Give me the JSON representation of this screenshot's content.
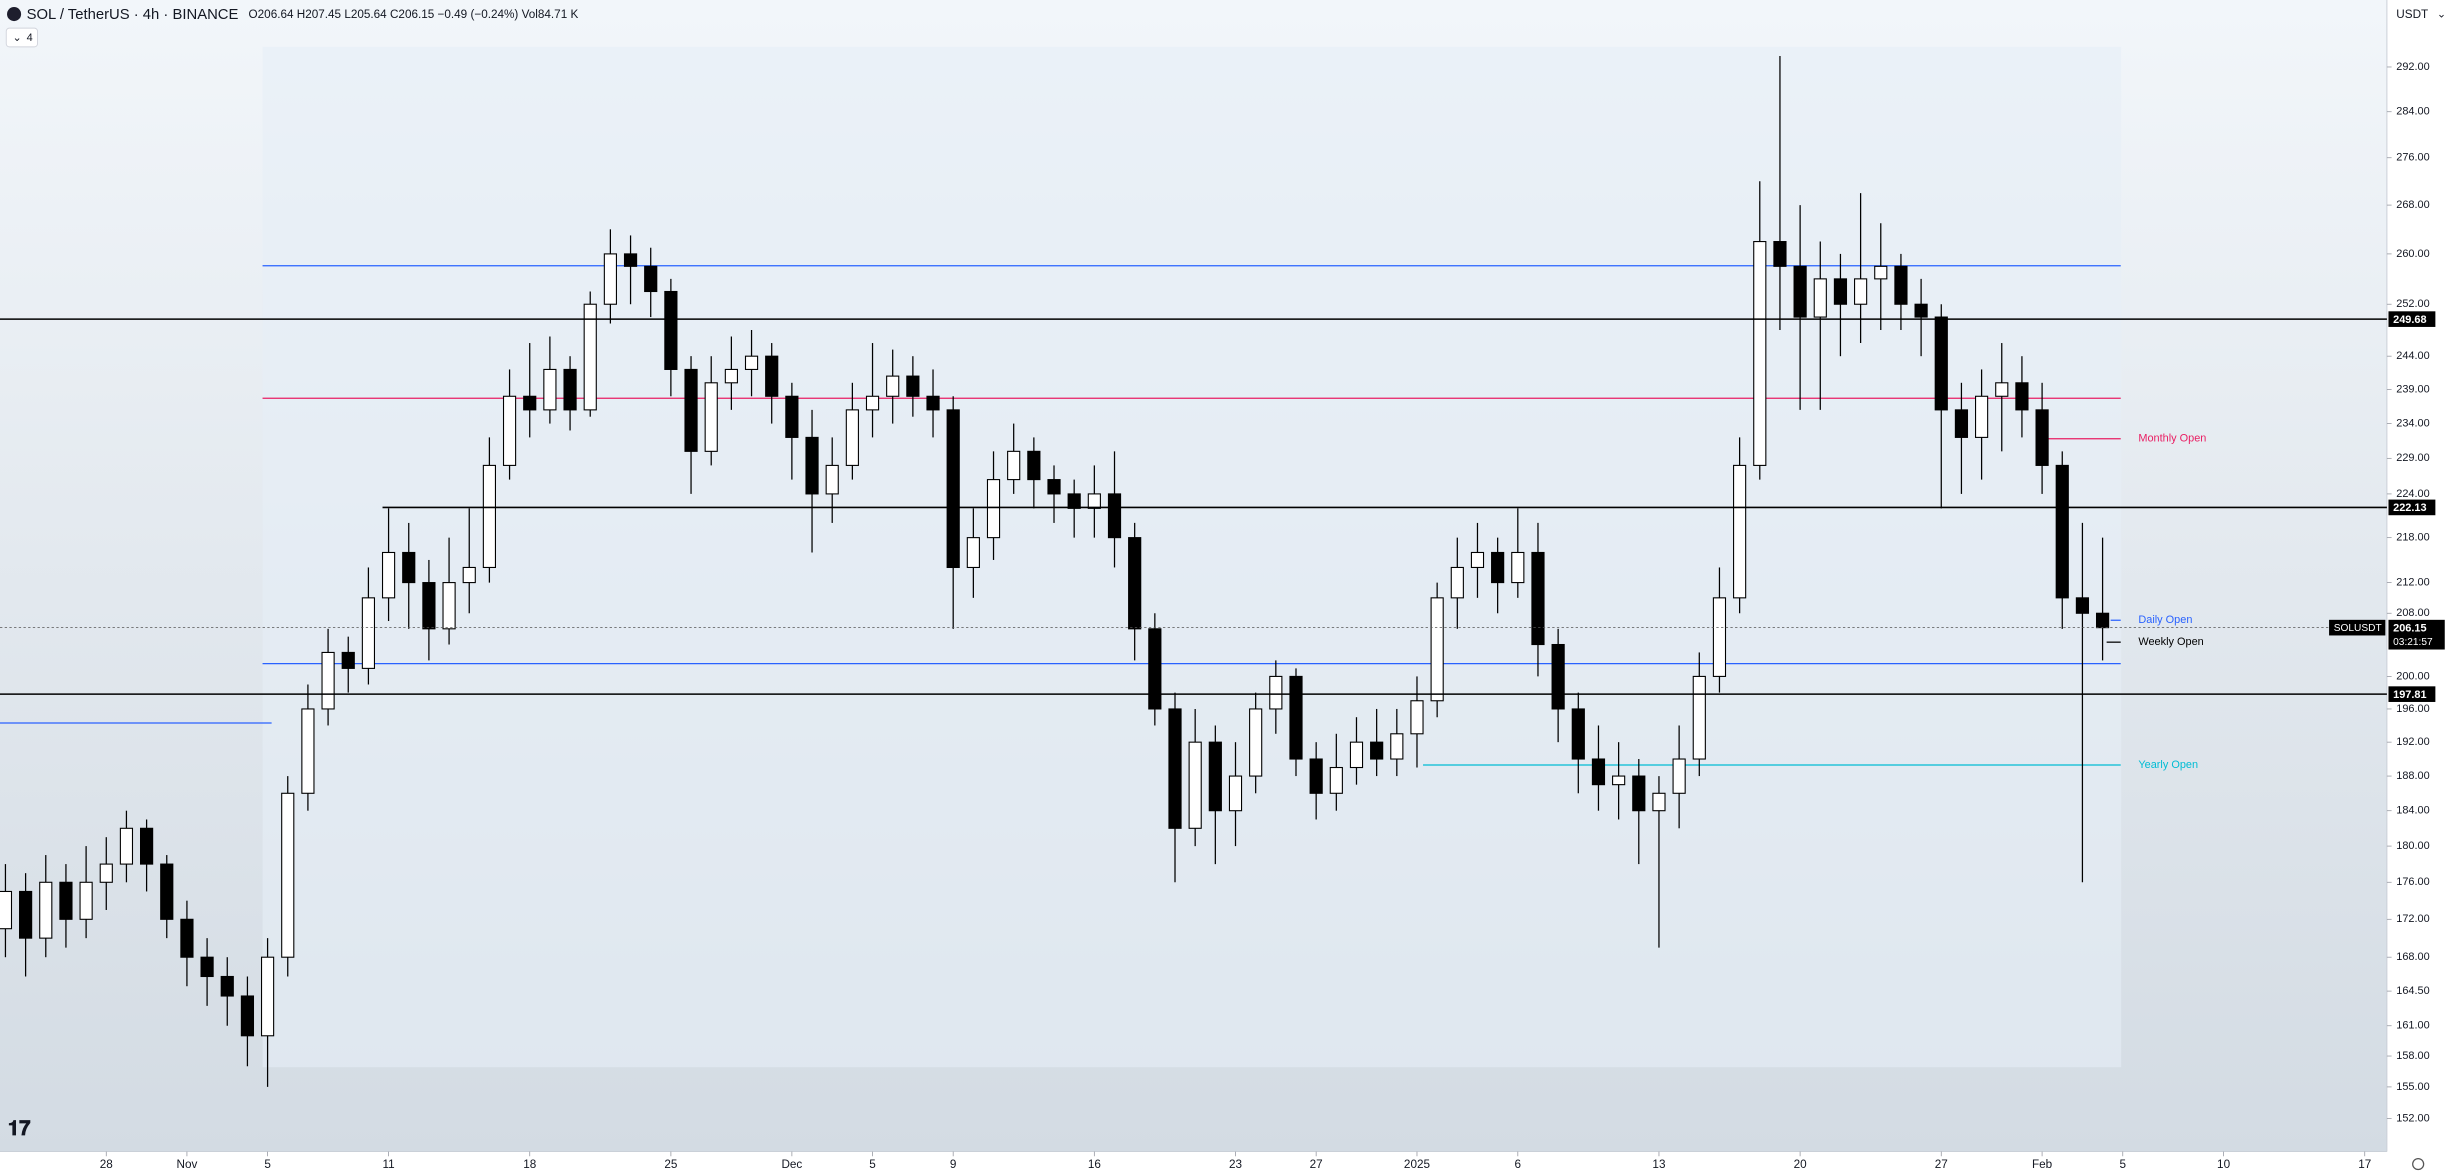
{
  "header": {
    "symbol": "SOL / TetherUS · 4h · BINANCE",
    "ohlc": "O206.64 H207.45 L205.64 C206.15 −0.49 (−0.24%) Vol84.71 K",
    "indicators": "4",
    "currency": "USDT"
  },
  "chart_data": {
    "type": "candlestick",
    "log_scale": true,
    "grid": false,
    "up_color": "#ffffff",
    "down_color": "#000000",
    "xlim": [
      -5.27,
      113.1
    ],
    "ylim": [
      148.9,
      304.4
    ],
    "xticks": [
      {
        "value": 0,
        "label": "28"
      },
      {
        "value": 4,
        "label": "Nov"
      },
      {
        "value": 8,
        "label": "5"
      },
      {
        "value": 14,
        "label": "11"
      },
      {
        "value": 21,
        "label": "18"
      },
      {
        "value": 28,
        "label": "25"
      },
      {
        "value": 34,
        "label": "Dec"
      },
      {
        "value": 38,
        "label": "5"
      },
      {
        "value": 42,
        "label": "9"
      },
      {
        "value": 49,
        "label": "16"
      },
      {
        "value": 56,
        "label": "23"
      },
      {
        "value": 60,
        "label": "27"
      },
      {
        "value": 65,
        "label": "2025"
      },
      {
        "value": 70,
        "label": "6"
      },
      {
        "value": 77,
        "label": "13"
      },
      {
        "value": 84,
        "label": "20"
      },
      {
        "value": 91,
        "label": "27"
      },
      {
        "value": 96,
        "label": "Feb"
      },
      {
        "value": 100,
        "label": "5"
      },
      {
        "value": 105,
        "label": "10"
      },
      {
        "value": 112,
        "label": "17"
      }
    ],
    "yticks": [
      {
        "value": 292,
        "label": "292.00"
      },
      {
        "value": 284,
        "label": "284.00"
      },
      {
        "value": 276,
        "label": "276.00"
      },
      {
        "value": 268,
        "label": "268.00"
      },
      {
        "value": 260,
        "label": "260.00"
      },
      {
        "value": 252,
        "label": "252.00"
      },
      {
        "value": 244,
        "label": "244.00"
      },
      {
        "value": 239,
        "label": "239.00"
      },
      {
        "value": 234,
        "label": "234.00"
      },
      {
        "value": 229,
        "label": "229.00"
      },
      {
        "value": 224,
        "label": "224.00"
      },
      {
        "value": 218,
        "label": "218.00"
      },
      {
        "value": 212,
        "label": "212.00"
      },
      {
        "value": 208,
        "label": "208.00"
      },
      {
        "value": 200,
        "label": "200.00"
      },
      {
        "value": 196,
        "label": "196.00"
      },
      {
        "value": 192,
        "label": "192.00"
      },
      {
        "value": 188,
        "label": "188.00"
      },
      {
        "value": 184,
        "label": "184.00"
      },
      {
        "value": 180,
        "label": "180.00"
      },
      {
        "value": 176,
        "label": "176.00"
      },
      {
        "value": 172,
        "label": "172.00"
      },
      {
        "value": 168,
        "label": "168.00"
      },
      {
        "value": 164.5,
        "label": "164.50"
      },
      {
        "value": 161,
        "label": "161.00"
      },
      {
        "value": 158,
        "label": "158.00"
      },
      {
        "value": 155,
        "label": "155.00"
      },
      {
        "value": 152,
        "label": "152.00"
      }
    ],
    "x": [
      -5,
      -4,
      -3,
      -2,
      -1,
      0,
      1,
      2,
      3,
      4,
      5,
      6,
      7,
      8,
      9,
      10,
      11,
      12,
      13,
      14,
      15,
      16,
      17,
      18,
      19,
      20,
      21,
      22,
      23,
      24,
      25,
      26,
      27,
      28,
      29,
      30,
      31,
      32,
      33,
      34,
      35,
      36,
      37,
      38,
      39,
      40,
      41,
      42,
      43,
      44,
      45,
      46,
      47,
      48,
      49,
      50,
      51,
      52,
      53,
      54,
      55,
      56,
      57,
      58,
      59,
      60,
      61,
      62,
      63,
      64,
      65,
      66,
      67,
      68,
      69,
      70,
      71,
      72,
      73,
      74,
      75,
      76,
      77,
      78,
      79,
      80,
      81,
      82,
      83,
      84,
      85,
      86,
      87,
      88,
      89,
      90,
      91,
      92,
      93,
      94,
      95,
      96,
      97,
      98,
      99
    ],
    "open": [
      171,
      175,
      170,
      176,
      172,
      176,
      178,
      182,
      178,
      172,
      168,
      166,
      164,
      160,
      168,
      186,
      196,
      203,
      201,
      210,
      216,
      212,
      206,
      212,
      214,
      228,
      238,
      236,
      242,
      236,
      252,
      260,
      258,
      254,
      242,
      230,
      240,
      242,
      244,
      238,
      232,
      224,
      228,
      236,
      238,
      241,
      238,
      236,
      214,
      218,
      226,
      230,
      226,
      224,
      222,
      224,
      218,
      206,
      196,
      182,
      192,
      184,
      188,
      196,
      200,
      190,
      186,
      189,
      192,
      190,
      193,
      197,
      210,
      214,
      216,
      212,
      216,
      204,
      196,
      190,
      187,
      188,
      184,
      186,
      190,
      200,
      210,
      228,
      262,
      258,
      250,
      256,
      252,
      256,
      258,
      252,
      250,
      236,
      232,
      238,
      240,
      236,
      228,
      210,
      208
    ],
    "high": [
      178,
      177,
      179,
      178,
      180,
      181,
      184,
      183,
      179,
      174,
      170,
      168,
      166,
      170,
      188,
      199,
      206,
      205,
      214,
      222,
      220,
      215,
      218,
      222,
      232,
      242,
      246,
      247,
      244,
      254,
      264,
      263,
      261,
      256,
      244,
      244,
      247,
      248,
      246,
      240,
      236,
      232,
      240,
      246,
      245,
      244,
      242,
      238,
      222,
      230,
      234,
      232,
      228,
      226,
      228,
      230,
      220,
      208,
      198,
      196,
      194,
      192,
      198,
      202,
      201,
      192,
      193,
      195,
      196,
      196,
      200,
      212,
      218,
      220,
      218,
      222,
      220,
      206,
      198,
      194,
      192,
      190,
      188,
      194,
      203,
      214,
      232,
      272,
      294,
      268,
      262,
      260,
      270,
      265,
      260,
      256,
      252,
      240,
      242,
      246,
      244,
      240,
      230,
      220,
      218
    ],
    "low": [
      168,
      166,
      168,
      169,
      170,
      173,
      176,
      175,
      170,
      165,
      163,
      161,
      157,
      155,
      166,
      184,
      194,
      198,
      199,
      207,
      206,
      202,
      204,
      208,
      212,
      226,
      232,
      234,
      233,
      235,
      249,
      252,
      250,
      238,
      224,
      228,
      236,
      238,
      234,
      226,
      216,
      220,
      226,
      232,
      234,
      235,
      232,
      206,
      210,
      215,
      224,
      222,
      220,
      218,
      218,
      214,
      202,
      194,
      176,
      180,
      178,
      180,
      186,
      193,
      188,
      183,
      184,
      187,
      188,
      188,
      189,
      195,
      206,
      210,
      208,
      210,
      200,
      192,
      186,
      184,
      183,
      178,
      169,
      182,
      188,
      198,
      208,
      226,
      248,
      236,
      236,
      244,
      246,
      248,
      248,
      244,
      222,
      224,
      226,
      230,
      232,
      224,
      206,
      176,
      202
    ],
    "close": [
      175,
      170,
      176,
      172,
      176,
      178,
      182,
      178,
      172,
      168,
      166,
      164,
      160,
      168,
      186,
      196,
      203,
      201,
      210,
      216,
      212,
      206,
      212,
      214,
      228,
      238,
      236,
      242,
      236,
      252,
      260,
      258,
      254,
      242,
      230,
      240,
      242,
      244,
      238,
      232,
      224,
      228,
      236,
      238,
      241,
      238,
      236,
      214,
      218,
      226,
      230,
      226,
      224,
      222,
      224,
      218,
      206,
      196,
      182,
      192,
      184,
      188,
      196,
      200,
      190,
      186,
      189,
      192,
      190,
      193,
      197,
      210,
      214,
      216,
      212,
      216,
      204,
      196,
      190,
      187,
      188,
      184,
      186,
      190,
      200,
      210,
      228,
      262,
      258,
      250,
      256,
      252,
      256,
      258,
      252,
      250,
      236,
      232,
      238,
      240,
      236,
      228,
      210,
      208,
      206.15
    ],
    "levels": [
      {
        "value": 249.68,
        "color": "#000000"
      },
      {
        "value": 222.13,
        "color": "#000000",
        "from": 13.7
      },
      {
        "value": 197.81,
        "color": "#000000"
      }
    ],
    "lines": [
      {
        "value": 258.1,
        "color": "#2962ff",
        "from": 7.75,
        "to": 99.9
      },
      {
        "value": 237.7,
        "color": "#e91e63",
        "from": 7.75,
        "to": 99.9
      },
      {
        "value": 201.6,
        "color": "#2962ff",
        "from": 7.75,
        "to": 99.9
      },
      {
        "value": 194.3,
        "color": "#2962ff",
        "from": -5.27,
        "to": 8.2
      },
      {
        "name": "Monthly Open",
        "value": 231.8,
        "color": "#e91e63",
        "from": 96,
        "to": 99.9
      },
      {
        "name": "Daily Open",
        "value": 207.1,
        "color": "#2962ff",
        "from": 99.4,
        "to": 99.9
      },
      {
        "name": "Weekly Open",
        "value": 204.3,
        "color": "#000000",
        "from": 99.2,
        "to": 99.9
      },
      {
        "name": "Yearly Open",
        "value": 189.3,
        "color": "#00bcd4",
        "from": 65.3,
        "to": 99.9
      }
    ],
    "last_price": {
      "symbol": "SOLUSDT",
      "value": 206.15,
      "countdown": "03:21:57"
    }
  }
}
